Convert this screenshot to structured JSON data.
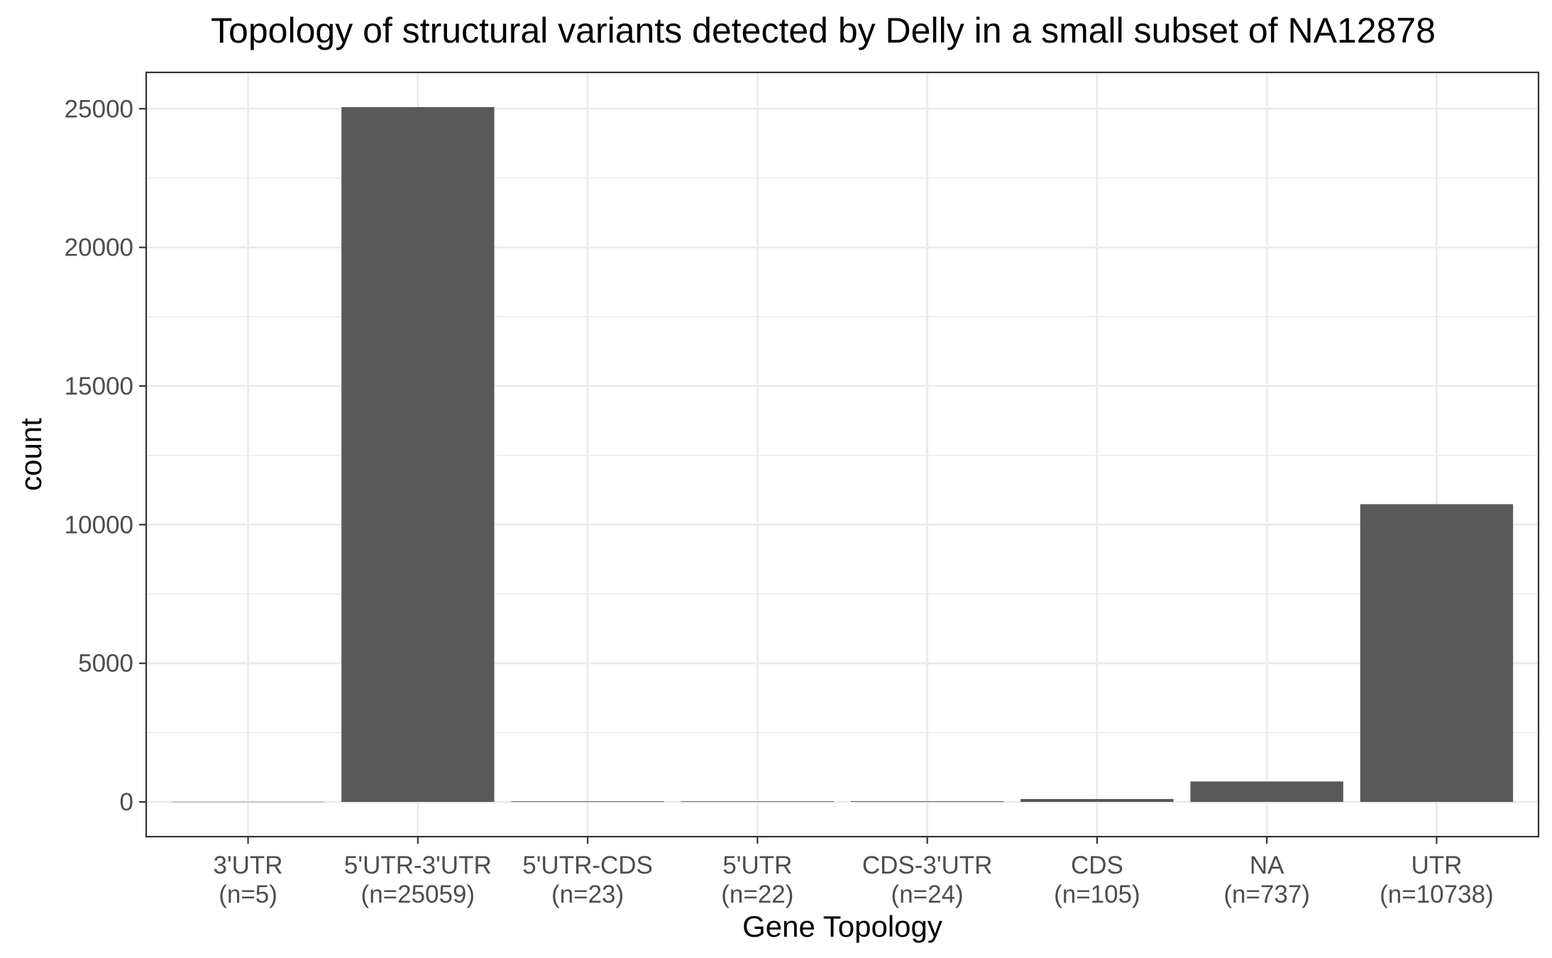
{
  "chart_data": {
    "type": "bar",
    "title": "Topology of structural variants detected by Delly in a small subset of NA12878",
    "xlabel": "Gene Topology",
    "ylabel": "count",
    "categories": [
      "3'UTR",
      "5'UTR-3'UTR",
      "5'UTR-CDS",
      "5'UTR",
      "CDS-3'UTR",
      "CDS",
      "NA",
      "UTR"
    ],
    "category_counts": [
      "(n=5)",
      "(n=25059)",
      "(n=23)",
      "(n=22)",
      "(n=24)",
      "(n=105)",
      "(n=737)",
      "(n=10738)"
    ],
    "values": [
      5,
      25059,
      23,
      22,
      24,
      105,
      737,
      10738
    ],
    "ylim": [
      -1253,
      26312
    ],
    "yticks": [
      0,
      5000,
      10000,
      15000,
      20000,
      25000
    ],
    "grid": true,
    "legend": "none",
    "colors": {
      "bar": "#595959",
      "grid": "#ebebeb",
      "panel_border": "#333333",
      "tick_label": "#4d4d4d",
      "background": "#ffffff"
    }
  }
}
